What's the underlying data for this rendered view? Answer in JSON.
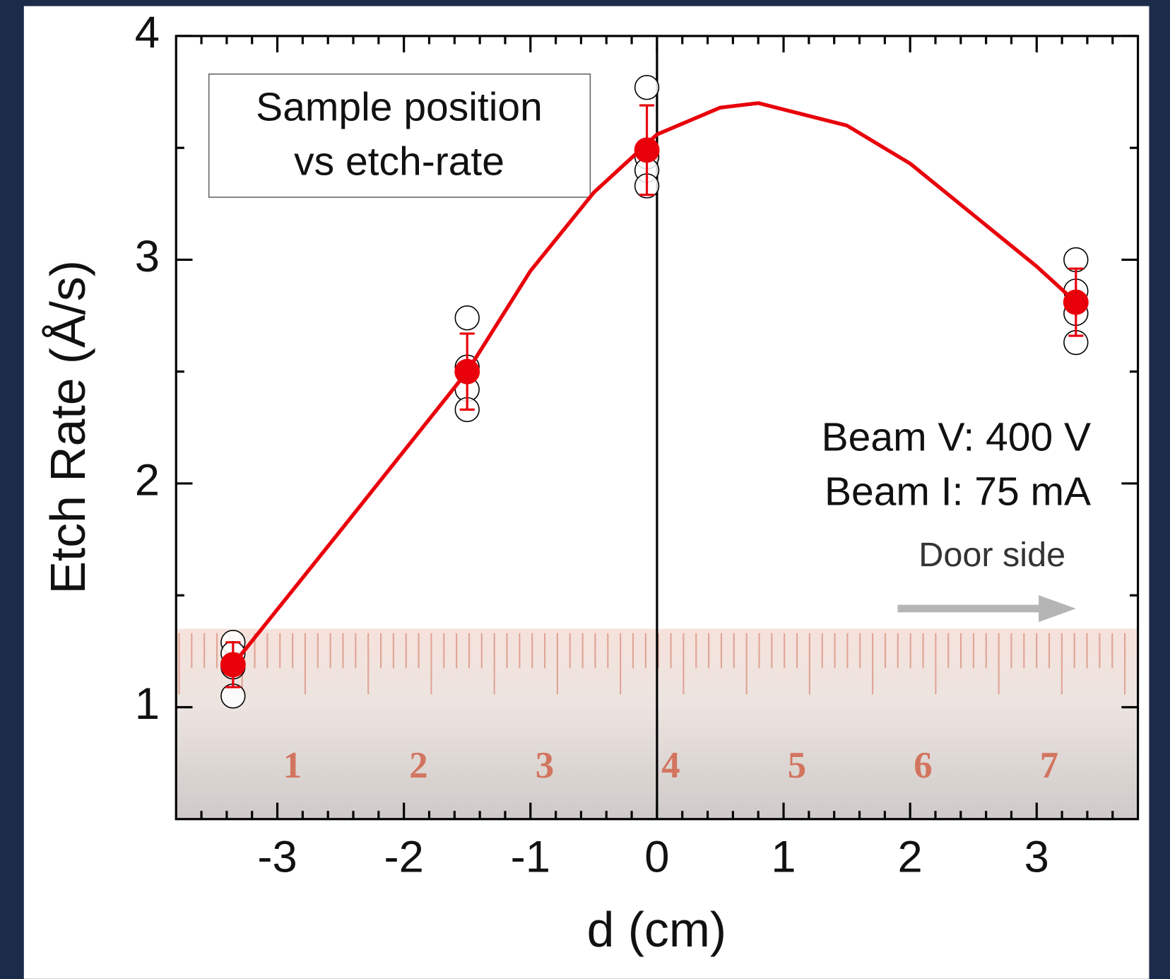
{
  "chart_data": {
    "type": "scatter",
    "xlabel": "d (cm)",
    "ylabel": "Etch Rate (Å/s)",
    "xlim": [
      -3.8,
      3.8
    ],
    "ylim": [
      0.5,
      4
    ],
    "xticks": [
      -3,
      -2,
      -1,
      0,
      1,
      2,
      3
    ],
    "yticks": [
      1,
      2,
      3,
      4
    ],
    "xminorticks": [
      -3.6,
      -3.4,
      -3.2,
      -2.8,
      -2.6,
      -2.4,
      -2.2,
      -1.8,
      -1.6,
      -1.4,
      -1.2,
      -0.8,
      -0.6,
      -0.4,
      -0.2,
      0.2,
      0.4,
      0.6,
      0.8,
      1.2,
      1.4,
      1.6,
      1.8,
      2.2,
      2.4,
      2.6,
      2.8,
      3.2,
      3.4,
      3.6
    ],
    "yminorticks": [
      1.5,
      2.5,
      3.5
    ],
    "vline": 0,
    "series": [
      {
        "marker": "open-circle",
        "color": "#000000",
        "x": [
          -3.35,
          -3.35,
          -3.35,
          -3.35,
          -1.5,
          -1.5,
          -1.5,
          -1.5,
          -0.08,
          -0.08,
          -0.08,
          -0.08,
          3.31,
          3.31,
          3.31,
          3.31
        ],
        "values": [
          1.29,
          1.24,
          1.18,
          1.05,
          2.74,
          2.52,
          2.42,
          2.33,
          3.77,
          3.46,
          3.4,
          3.33,
          3.0,
          2.86,
          2.76,
          2.63
        ]
      },
      {
        "marker": "line",
        "color": "#e8000b",
        "x": [
          -3.35,
          -2.5,
          -1.5,
          -1.0,
          -0.5,
          0,
          0.5,
          0.8,
          1.5,
          2.0,
          2.5,
          3.0,
          3.31
        ],
        "values": [
          1.19,
          1.79,
          2.5,
          2.95,
          3.3,
          3.56,
          3.68,
          3.7,
          3.6,
          3.43,
          3.2,
          2.97,
          2.81
        ]
      },
      {
        "marker": "filled-circle",
        "color": "#e8000b",
        "x": [
          -3.35,
          -1.5,
          -0.08,
          3.31
        ],
        "values": [
          1.19,
          2.5,
          3.49,
          2.81
        ],
        "errors": [
          0.1,
          0.17,
          0.2,
          0.15
        ]
      }
    ],
    "annotations": {
      "box_lines": [
        "Sample position",
        "vs etch-rate"
      ],
      "beam_lines": [
        "Beam V: 400 V",
        "Beam I: 75 mA"
      ],
      "door_label": "Door side"
    },
    "ruler_labels": [
      1,
      2,
      3,
      4,
      5,
      6,
      7
    ]
  }
}
